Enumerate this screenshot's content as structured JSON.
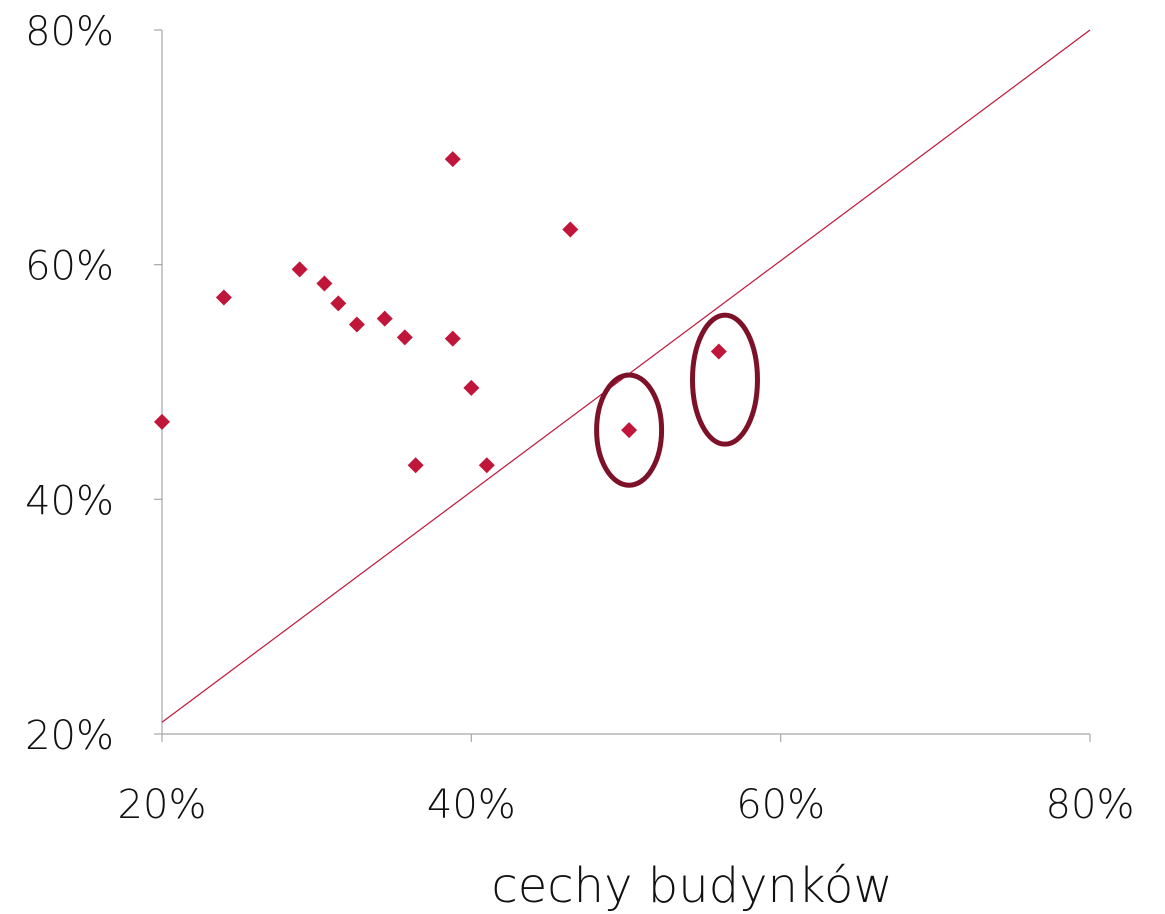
{
  "chart_data": {
    "type": "scatter",
    "title": "",
    "xlabel": "cechy budynków",
    "ylabel": "",
    "xlim": [
      0.2,
      0.8
    ],
    "ylim": [
      0.2,
      0.8
    ],
    "x_ticks": [
      0.2,
      0.4,
      0.6,
      0.8
    ],
    "y_ticks": [
      0.2,
      0.4,
      0.6,
      0.8
    ],
    "x_tick_labels": [
      "20%",
      "40%",
      "60%",
      "80%"
    ],
    "y_tick_labels": [
      "20%",
      "40%",
      "60%",
      "80%"
    ],
    "grid": false,
    "legend": "none",
    "marker": "diamond",
    "series": [
      {
        "color": "#c0163a",
        "points": [
          {
            "x": 0.2,
            "y": 0.466
          },
          {
            "x": 0.24,
            "y": 0.572
          },
          {
            "x": 0.289,
            "y": 0.596
          },
          {
            "x": 0.305,
            "y": 0.584
          },
          {
            "x": 0.314,
            "y": 0.567
          },
          {
            "x": 0.326,
            "y": 0.549
          },
          {
            "x": 0.344,
            "y": 0.554
          },
          {
            "x": 0.357,
            "y": 0.538
          },
          {
            "x": 0.364,
            "y": 0.429
          },
          {
            "x": 0.388,
            "y": 0.69
          },
          {
            "x": 0.388,
            "y": 0.537
          },
          {
            "x": 0.4,
            "y": 0.495
          },
          {
            "x": 0.41,
            "y": 0.429
          },
          {
            "x": 0.464,
            "y": 0.63
          },
          {
            "x": 0.502,
            "y": 0.459
          },
          {
            "x": 0.56,
            "y": 0.526
          }
        ]
      }
    ],
    "reference_line": {
      "from": [
        0.2,
        0.21
      ],
      "to": [
        0.8,
        0.8
      ],
      "color": "#c0163a"
    },
    "annotations": [
      {
        "type": "ellipse",
        "around_point": [
          0.502,
          0.459
        ],
        "rx_units": 0.021,
        "ry_units": 0.047,
        "color": "#7d1128"
      },
      {
        "type": "ellipse",
        "around_point": [
          0.564,
          0.502
        ],
        "rx_units": 0.021,
        "ry_units": 0.055,
        "color": "#7d1128"
      }
    ]
  }
}
